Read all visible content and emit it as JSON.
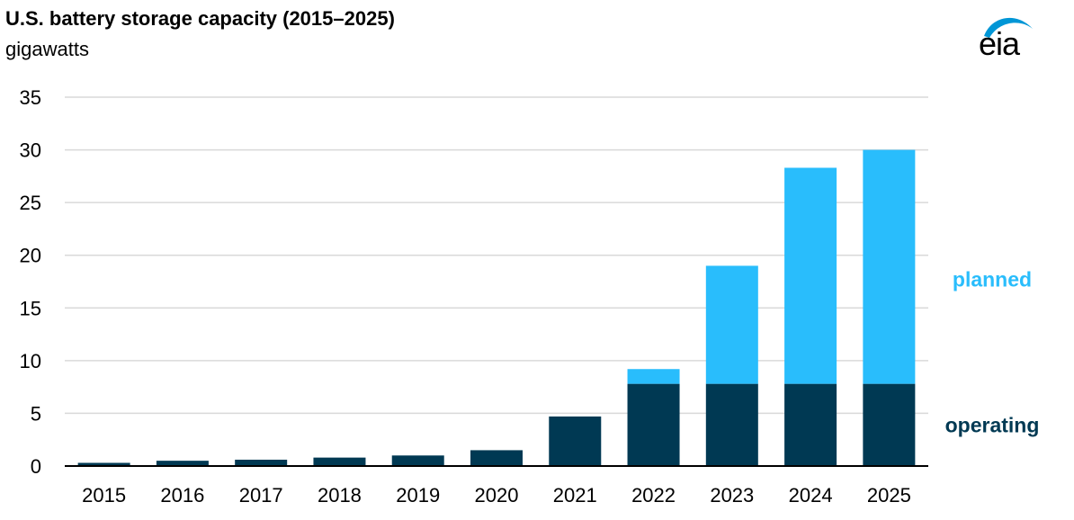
{
  "colors": {
    "operating": "#003953",
    "planned": "#29bdfc",
    "grid": "#d9d9d9",
    "axis": "#000000",
    "logo_swoosh": "#0096d6"
  },
  "logo": {
    "text": "eia"
  },
  "chart_data": {
    "type": "bar",
    "stacked": true,
    "title": "U.S. battery storage capacity (2015–2025)",
    "subtitle": "gigawatts",
    "categories": [
      "2015",
      "2016",
      "2017",
      "2018",
      "2019",
      "2020",
      "2021",
      "2022",
      "2023",
      "2024",
      "2025"
    ],
    "series": [
      {
        "name": "operating",
        "values": [
          0.3,
          0.5,
          0.6,
          0.8,
          1.0,
          1.5,
          4.7,
          7.8,
          7.8,
          7.8,
          7.8
        ]
      },
      {
        "name": "planned",
        "values": [
          0,
          0,
          0,
          0,
          0,
          0,
          0,
          1.4,
          11.2,
          20.5,
          22.2
        ]
      }
    ],
    "ylim": [
      0,
      35
    ],
    "yticks": [
      "0",
      "5",
      "10",
      "15",
      "20",
      "25",
      "30",
      "35"
    ],
    "grid": true,
    "legend_placement": "right, labels beside stacked segments"
  }
}
